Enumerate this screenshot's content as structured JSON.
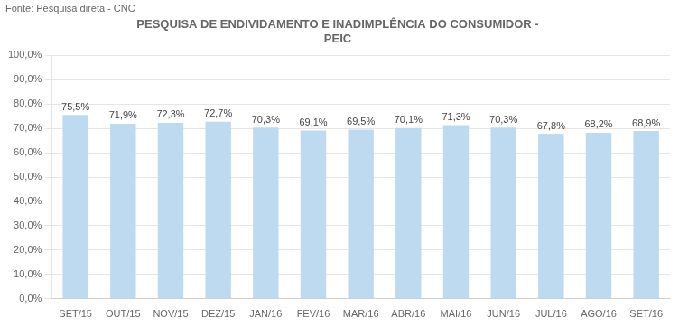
{
  "chart_data": {
    "type": "bar",
    "title": "PESQUISA DE ENDIVIDAMENTO E INADIMPLÊNCIA DO CONSUMIDOR -\nPEIC",
    "annotations": [
      "Fonte: Pesquisa direta - CNC"
    ],
    "categories": [
      "SET/15",
      "OUT/15",
      "NOV/15",
      "DEZ/15",
      "JAN/16",
      "FEV/16",
      "MAR/16",
      "ABR/16",
      "MAI/16",
      "JUN/16",
      "JUL/16",
      "AGO/16",
      "SET/16"
    ],
    "values": [
      75.5,
      71.9,
      72.3,
      72.7,
      70.3,
      69.1,
      69.5,
      70.1,
      71.3,
      70.3,
      67.8,
      68.2,
      68.9
    ],
    "value_labels": [
      "75,5%",
      "71,9%",
      "72,3%",
      "72,7%",
      "70,3%",
      "69,1%",
      "69,5%",
      "70,1%",
      "71,3%",
      "70,3%",
      "67,8%",
      "68,2%",
      "68,9%"
    ],
    "data_labels": true,
    "color": "#BEDAF0",
    "ylim": [
      0,
      100
    ],
    "yticks": [
      {
        "value": 0,
        "label": "0,0%"
      },
      {
        "value": 10,
        "label": "10,0%"
      },
      {
        "value": 20,
        "label": "20,0%"
      },
      {
        "value": 30,
        "label": "30,0%"
      },
      {
        "value": 40,
        "label": "40,0%"
      },
      {
        "value": 50,
        "label": "50,0%"
      },
      {
        "value": 60,
        "label": "60,0%"
      },
      {
        "value": 70,
        "label": "70,0%"
      },
      {
        "value": 80,
        "label": "80,0%"
      },
      {
        "value": 90,
        "label": "90,0%"
      },
      {
        "value": 100,
        "label": "100,0%"
      }
    ],
    "grid": true
  }
}
